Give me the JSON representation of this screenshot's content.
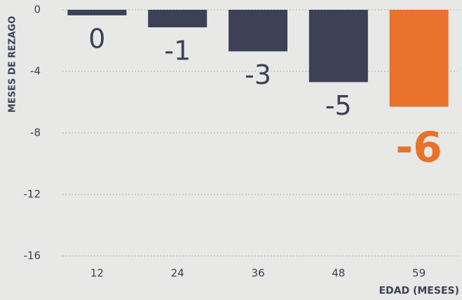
{
  "chart_data": {
    "type": "bar",
    "categories": [
      "12",
      "24",
      "36",
      "48",
      "59"
    ],
    "values": [
      -0.36,
      -1.14,
      -2.7,
      -4.7,
      -6.3
    ],
    "value_labels": [
      "0",
      "-1",
      "-3",
      "-5",
      "-6"
    ],
    "colors": [
      "#3d4157",
      "#3d4157",
      "#3d4157",
      "#3d4157",
      "#e8722a"
    ],
    "ylabel": "MESES DE REZAGO",
    "xlabel": "EDAD (MESES)",
    "ylim": [
      -16,
      0
    ],
    "yticks": [
      0,
      -4,
      -8,
      -12,
      -16
    ],
    "grid": true
  }
}
